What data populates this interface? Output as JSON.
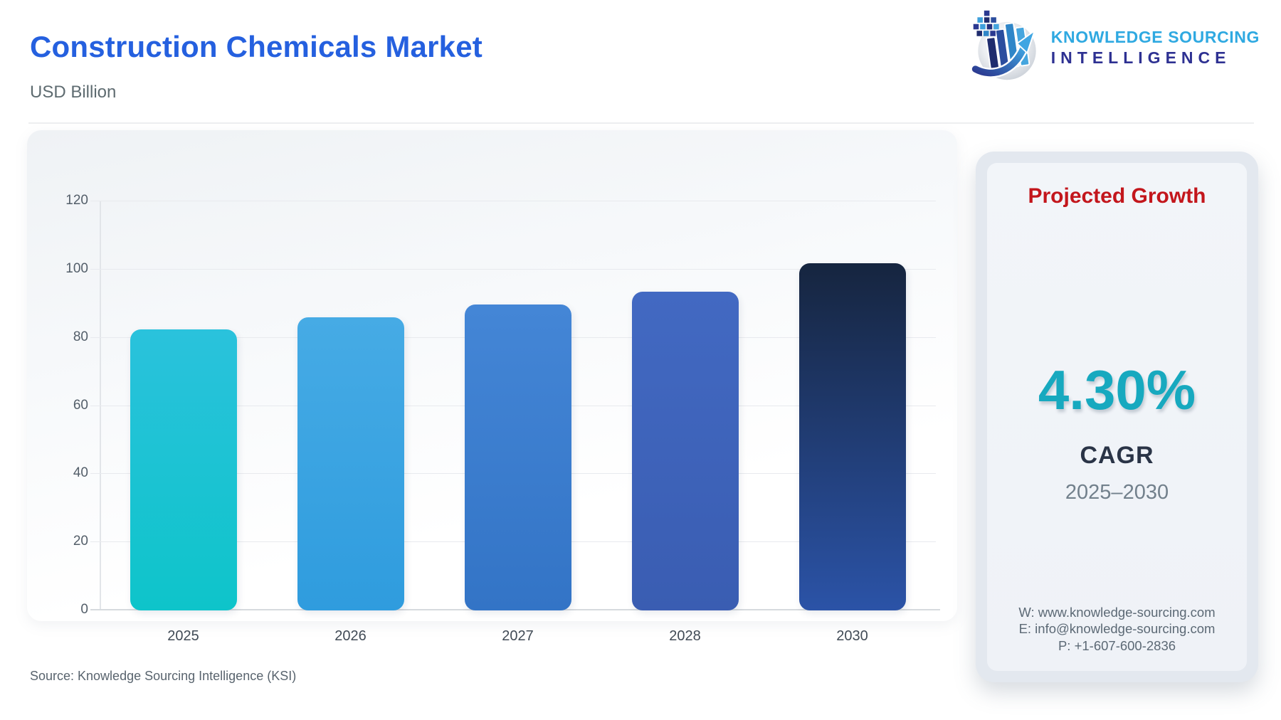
{
  "header": {
    "title": "Construction Chemicals Market",
    "subtitle": "USD Billion",
    "title_color": "#2560DF",
    "logo": {
      "line1": "KNOWLEDGE SOURCING",
      "line2": "INTELLIGENCE",
      "line1_color": "#2FA9E1",
      "line2_color": "#2E3192",
      "icon": "ksi-globe-bars-arrow-icon"
    }
  },
  "chart_data": {
    "type": "bar",
    "title": "Construction Chemicals Market",
    "unit_label": "USD Billion",
    "categories": [
      "2025",
      "2026",
      "2027",
      "2028",
      "2030"
    ],
    "values": [
      82.4,
      86.0,
      89.7,
      93.5,
      101.8
    ],
    "ylim": [
      0,
      120
    ],
    "yticks": [
      0,
      20,
      40,
      60,
      80,
      100,
      120
    ],
    "grid": true,
    "legend": "none",
    "bar_colors": [
      {
        "top": "#2AC2DC",
        "bottom": "#0EC4CA"
      },
      {
        "top": "#46ABE5",
        "bottom": "#2F9CDE"
      },
      {
        "top": "#4486D6",
        "bottom": "#3374C6"
      },
      {
        "top": "#4269C2",
        "bottom": "#3A5DB2"
      },
      {
        "top": "#16253F",
        "bottom": "#2B53A7"
      }
    ]
  },
  "sidebar": {
    "heading": "Projected Growth",
    "heading_color": "#C3161C",
    "cagr_value": "4.30%",
    "cagr_value_color": "#17A9BF",
    "cagr_label": "CAGR",
    "period": "2025–2030",
    "contact": {
      "website": "W: www.knowledge-sourcing.com",
      "email": "E: info@knowledge-sourcing.com",
      "phone": "P: +1-607-600-2836"
    }
  },
  "footer": {
    "source": "Source: Knowledge Sourcing Intelligence (KSI)"
  }
}
